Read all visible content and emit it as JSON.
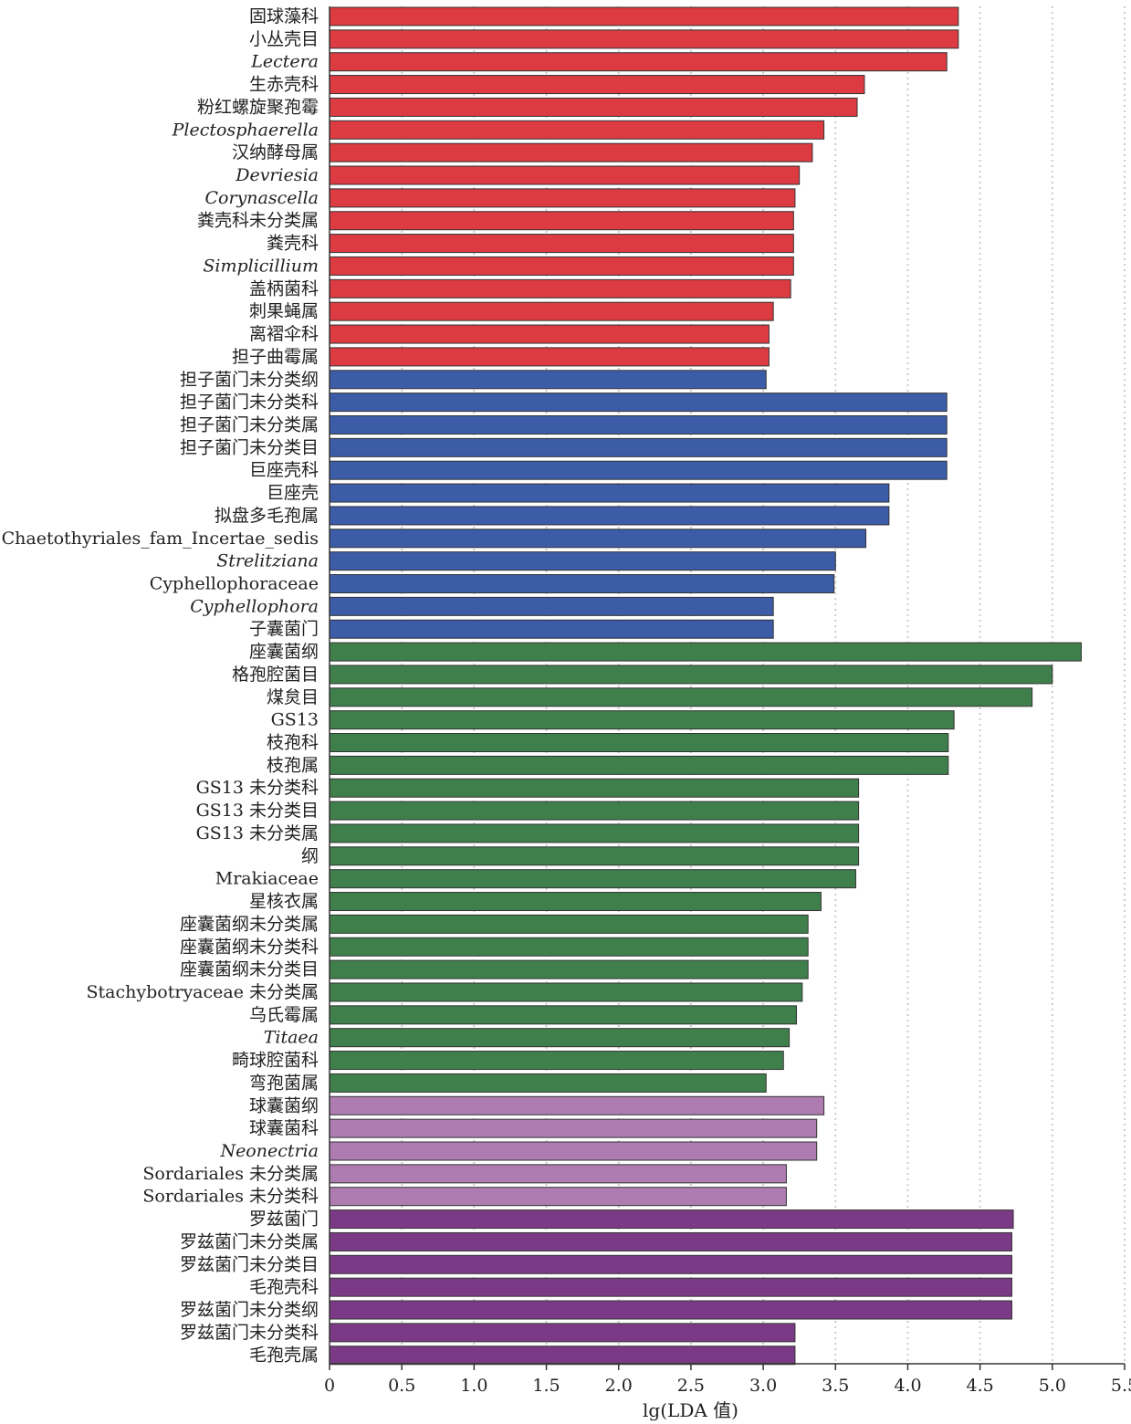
{
  "chart_data": {
    "type": "bar",
    "orientation": "horizontal",
    "xlabel": "lg(LDA 值)",
    "ylabel": "",
    "xlim": [
      0,
      5.5
    ],
    "xticks": [
      "0",
      "0.5",
      "1.0",
      "1.5",
      "2.0",
      "2.5",
      "3.0",
      "3.5",
      "4.0",
      "4.5",
      "5.0",
      "5.5"
    ],
    "grid": "vertical dotted lines at x ticks",
    "legend": "none",
    "colors": {
      "red": "#dc3b42",
      "blue": "#3c5ca8",
      "green": "#3f7f4c",
      "lightpurple": "#ae7cb1",
      "purple": "#7b3a85",
      "outline": "#333333",
      "gridline": "#cccccc"
    },
    "categories": [
      "固球藻科",
      "小丛壳目",
      "Lectera",
      "生赤壳科",
      "粉红螺旋聚孢霉",
      "Plectosphaerella",
      "汉纳酵母属",
      "Devriesia",
      "Corynascella",
      "粪壳科未分类属",
      "粪壳科",
      "Simplicillium",
      "盖柄菌科",
      "刺果蝇属",
      "离褶伞科",
      "担子曲霉属",
      "担子菌门未分类纲",
      "担子菌门未分类科",
      "担子菌门未分类属",
      "担子菌门未分类目",
      "巨座壳科",
      "巨座壳",
      "拟盘多毛孢属",
      "Chaetothyriales_fam_Incertae_sedis",
      "Strelitziana",
      "Cyphellophoraceae",
      "Cyphellophora",
      "子囊菌门",
      "座囊菌纲",
      "格孢腔菌目",
      "煤炱目",
      "GS13",
      "枝孢科",
      "枝孢属",
      "GS13 未分类科",
      "GS13 未分类目",
      "GS13 未分类属",
      "纲",
      "Mrakiaceae",
      "星核衣属",
      "座囊菌纲未分类属",
      "座囊菌纲未分类科",
      "座囊菌纲未分类目",
      "Stachybotryaceae 未分类属",
      "乌氏霉属",
      "Titaea",
      "畸球腔菌科",
      "弯孢菌属",
      "球囊菌纲",
      "球囊菌科",
      "Neonectria",
      "Sordariales 未分类属",
      "Sordariales 未分类科",
      "罗兹菌门",
      "罗兹菌门未分类属",
      "罗兹菌门未分类目",
      "毛孢壳科",
      "罗兹菌门未分类纲",
      "罗兹菌门未分类科",
      "毛孢壳属"
    ],
    "italic": [
      false,
      false,
      true,
      false,
      false,
      true,
      false,
      true,
      true,
      false,
      false,
      true,
      false,
      false,
      false,
      false,
      false,
      false,
      false,
      false,
      false,
      false,
      false,
      false,
      true,
      false,
      true,
      false,
      false,
      false,
      false,
      false,
      false,
      false,
      false,
      false,
      false,
      false,
      false,
      false,
      false,
      false,
      false,
      false,
      false,
      true,
      false,
      false,
      false,
      false,
      true,
      false,
      false,
      false,
      false,
      false,
      false,
      false,
      false,
      false
    ],
    "groups": [
      "red",
      "red",
      "red",
      "red",
      "red",
      "red",
      "red",
      "red",
      "red",
      "red",
      "red",
      "red",
      "red",
      "red",
      "red",
      "red",
      "blue",
      "blue",
      "blue",
      "blue",
      "blue",
      "blue",
      "blue",
      "blue",
      "blue",
      "blue",
      "blue",
      "blue",
      "green",
      "green",
      "green",
      "green",
      "green",
      "green",
      "green",
      "green",
      "green",
      "green",
      "green",
      "green",
      "green",
      "green",
      "green",
      "green",
      "green",
      "green",
      "green",
      "green",
      "lightpurple",
      "lightpurple",
      "lightpurple",
      "lightpurple",
      "lightpurple",
      "purple",
      "purple",
      "purple",
      "purple",
      "purple",
      "purple",
      "purple"
    ],
    "values": [
      4.35,
      4.35,
      4.27,
      3.7,
      3.65,
      3.42,
      3.34,
      3.25,
      3.22,
      3.21,
      3.21,
      3.21,
      3.19,
      3.07,
      3.04,
      3.04,
      3.02,
      4.27,
      4.27,
      4.27,
      4.27,
      3.87,
      3.87,
      3.71,
      3.5,
      3.49,
      3.07,
      3.07,
      5.2,
      5.0,
      4.86,
      4.32,
      4.28,
      4.28,
      3.66,
      3.66,
      3.66,
      3.66,
      3.64,
      3.4,
      3.31,
      3.31,
      3.31,
      3.27,
      3.23,
      3.18,
      3.14,
      3.02,
      3.42,
      3.37,
      3.37,
      3.16,
      3.16,
      4.73,
      4.72,
      4.72,
      4.72,
      4.72,
      3.22,
      3.22
    ]
  }
}
